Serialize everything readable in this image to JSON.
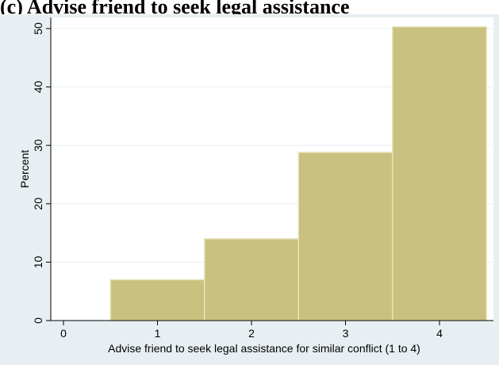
{
  "caption": "(c) Advise friend to seek legal assistance",
  "chart_data": {
    "type": "bar",
    "categories": [
      "1",
      "2",
      "3",
      "4"
    ],
    "x": [
      1,
      2,
      3,
      4
    ],
    "values": [
      7.0,
      14.0,
      28.8,
      50.3
    ],
    "title": "",
    "xlabel": "Advise friend to seek legal assistance for similar conflict (1 to 4)",
    "ylabel": "Percent",
    "xlim": [
      0,
      4.5
    ],
    "ylim": [
      0,
      50
    ],
    "xticks": [
      "0",
      "1",
      "2",
      "3",
      "4"
    ],
    "yticks": [
      "0",
      "10",
      "20",
      "30",
      "40",
      "50"
    ],
    "grid": true,
    "legend": "none",
    "colors": {
      "bar_fill": "#c9c17f",
      "bar_edge": "#e9e4bd",
      "outer_background": "#e8eff3",
      "plot_background": "#ffffff",
      "gridline": "#e8eff3",
      "axis": "#000000"
    }
  }
}
